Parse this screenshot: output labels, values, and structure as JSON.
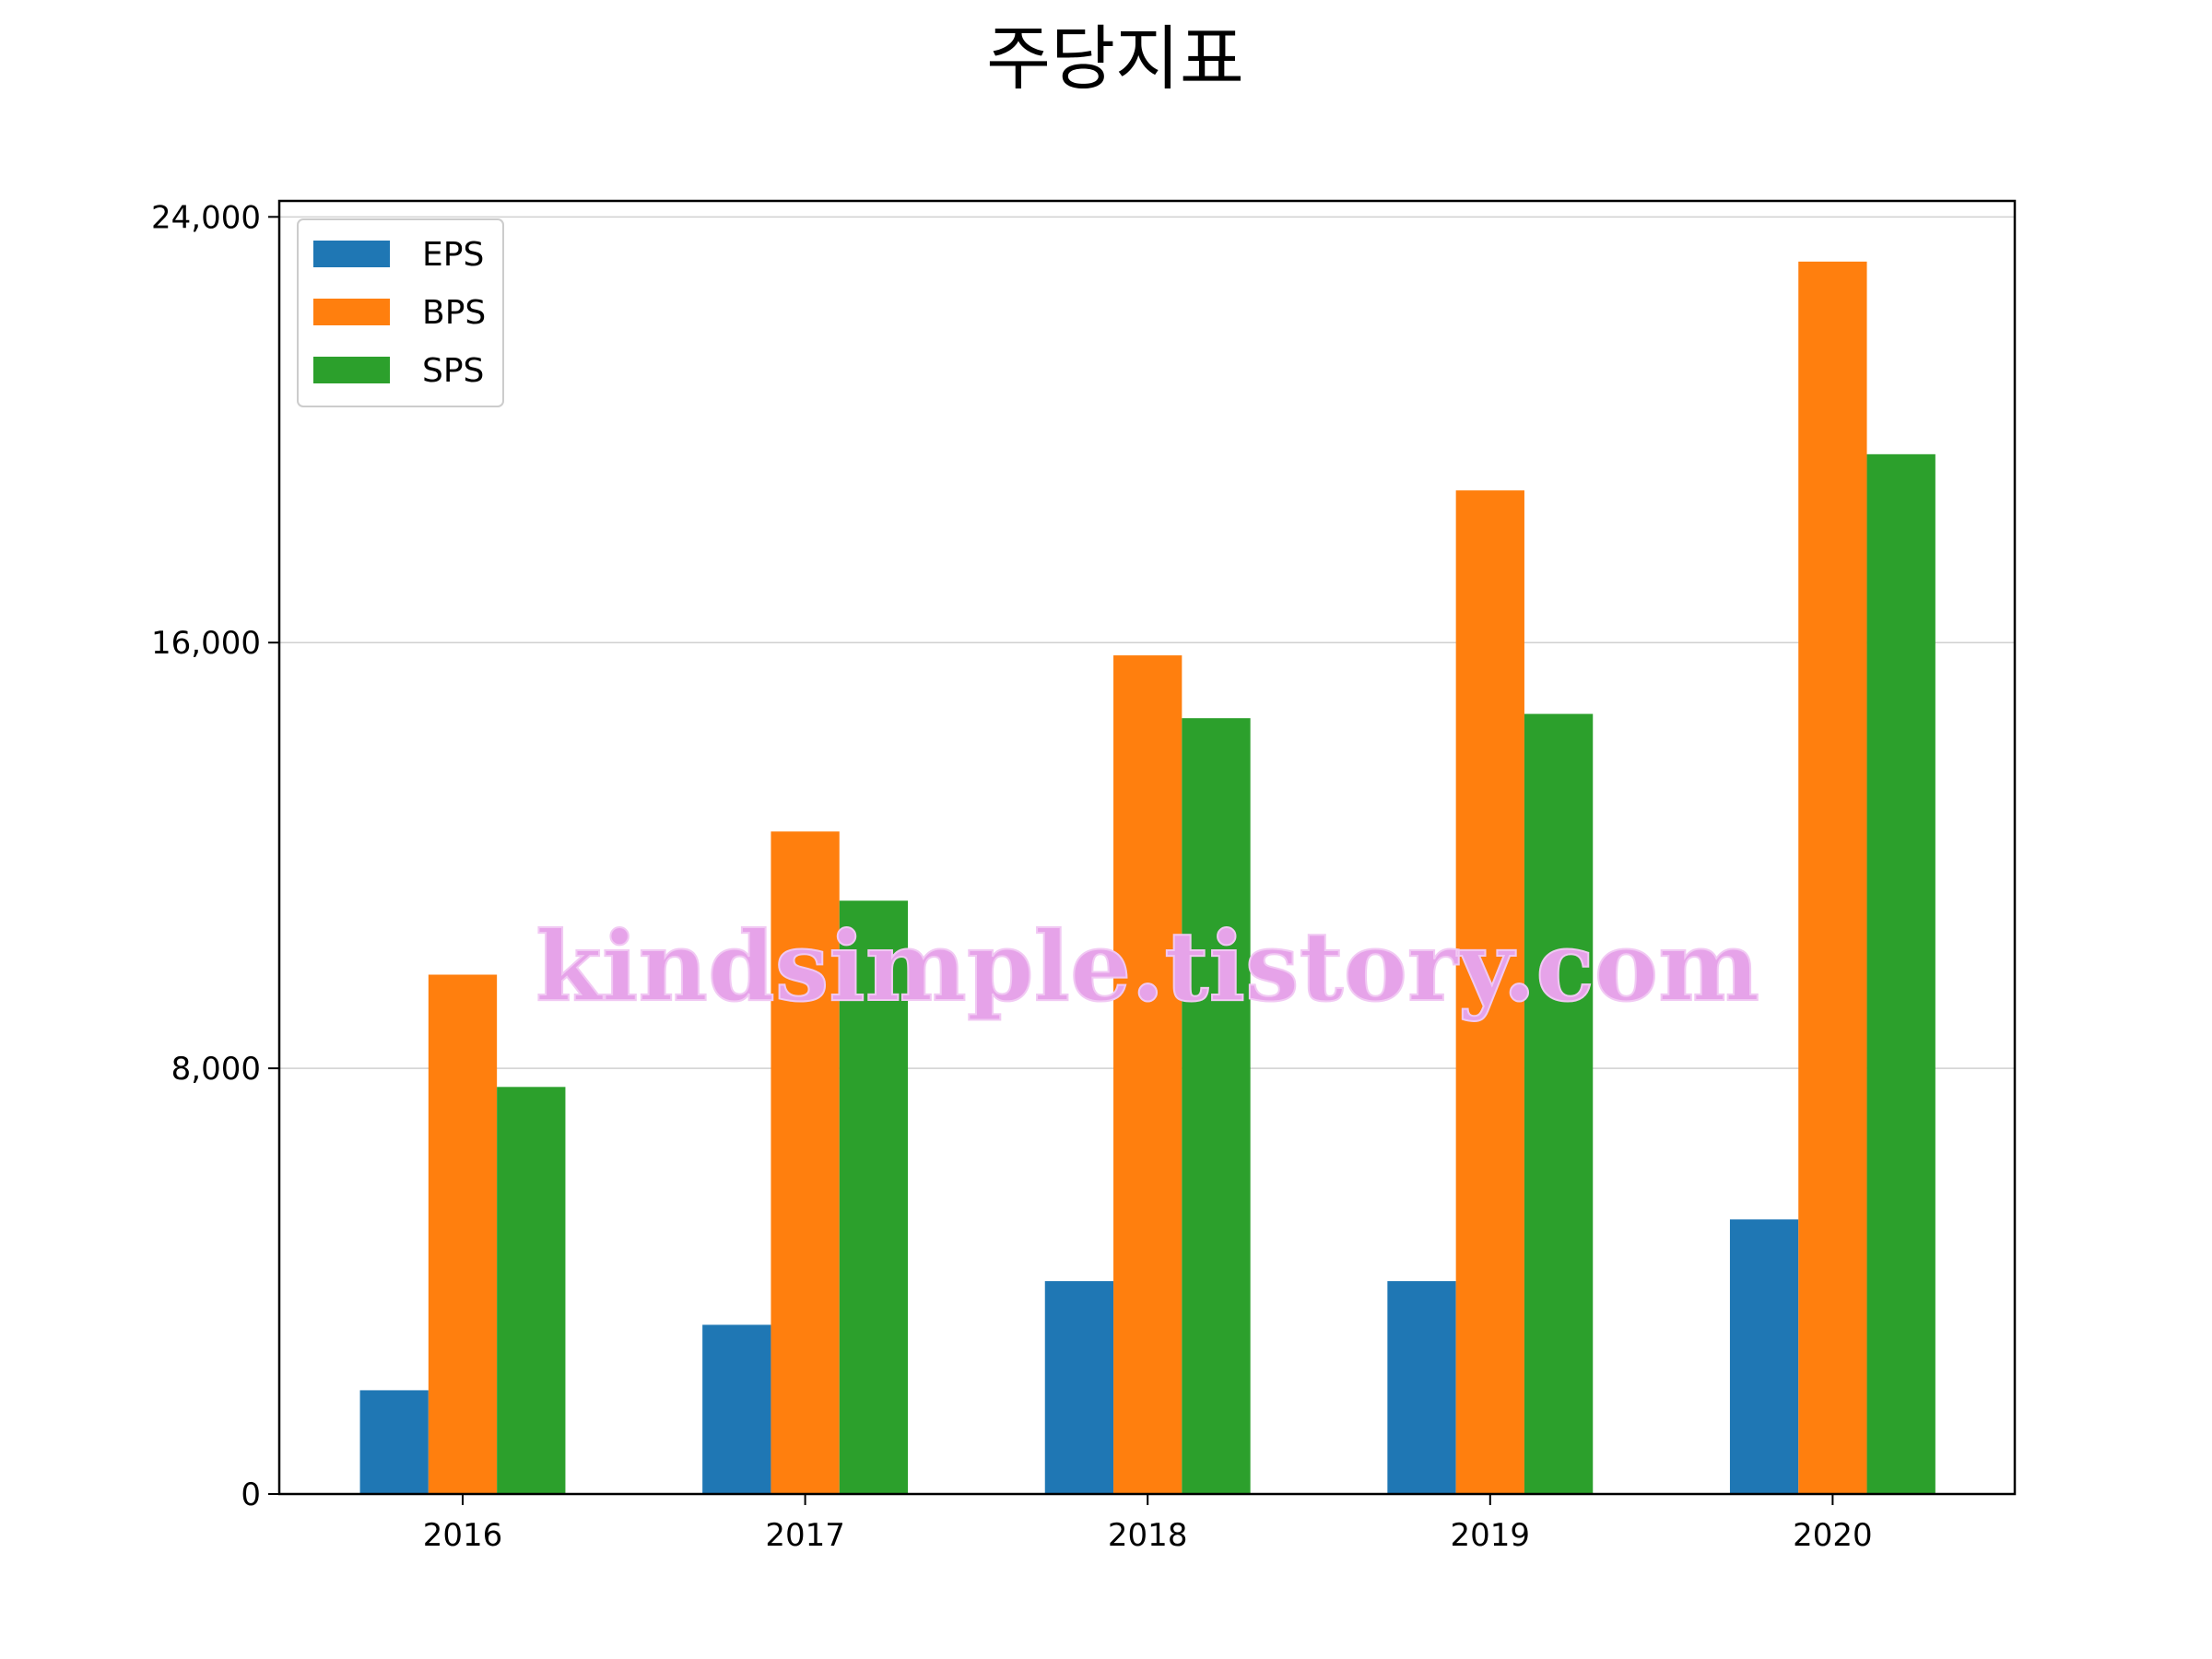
{
  "chart_data": {
    "type": "bar",
    "title": "주당지표",
    "xlabel": "",
    "ylabel": "",
    "categories": [
      "2016",
      "2017",
      "2018",
      "2019",
      "2020"
    ],
    "series": [
      {
        "name": "EPS",
        "color": "#1f77b4",
        "values": [
          1950,
          3180,
          4000,
          4000,
          5160
        ]
      },
      {
        "name": "BPS",
        "color": "#ff7f0e",
        "values": [
          9760,
          12450,
          15760,
          18860,
          23160
        ]
      },
      {
        "name": "SPS",
        "color": "#2ca02c",
        "values": [
          7650,
          11150,
          14580,
          14660,
          19540
        ]
      }
    ],
    "ylim": [
      0,
      24300
    ],
    "yticks": [
      0,
      8000,
      16000,
      24000
    ],
    "ytick_labels": [
      "0",
      "8,000",
      "16,000",
      "24,000"
    ],
    "grid": "y",
    "legend": "top-left"
  },
  "watermark": "kindsimple.tistory.com"
}
